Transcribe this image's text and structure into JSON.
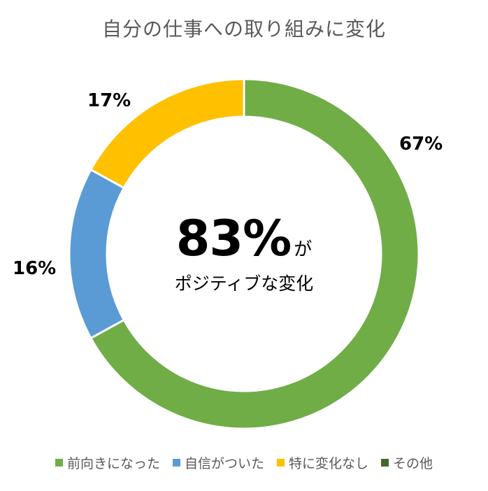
{
  "chart_data": {
    "type": "pie",
    "title": "自分の仕事への取り組みに変化",
    "categories": [
      "前向きになった",
      "自信がついた",
      "特に変化なし",
      "その他"
    ],
    "values": [
      67,
      16,
      17,
      0
    ],
    "value_labels": [
      "67%",
      "16%",
      "17%",
      ""
    ],
    "colors": [
      "#70AD47",
      "#5B9BD5",
      "#FFC000",
      "#43682B"
    ],
    "legend_position": "bottom",
    "center_big": "83%",
    "center_suffix": "が",
    "center_sub": "ポジティブな変化"
  }
}
